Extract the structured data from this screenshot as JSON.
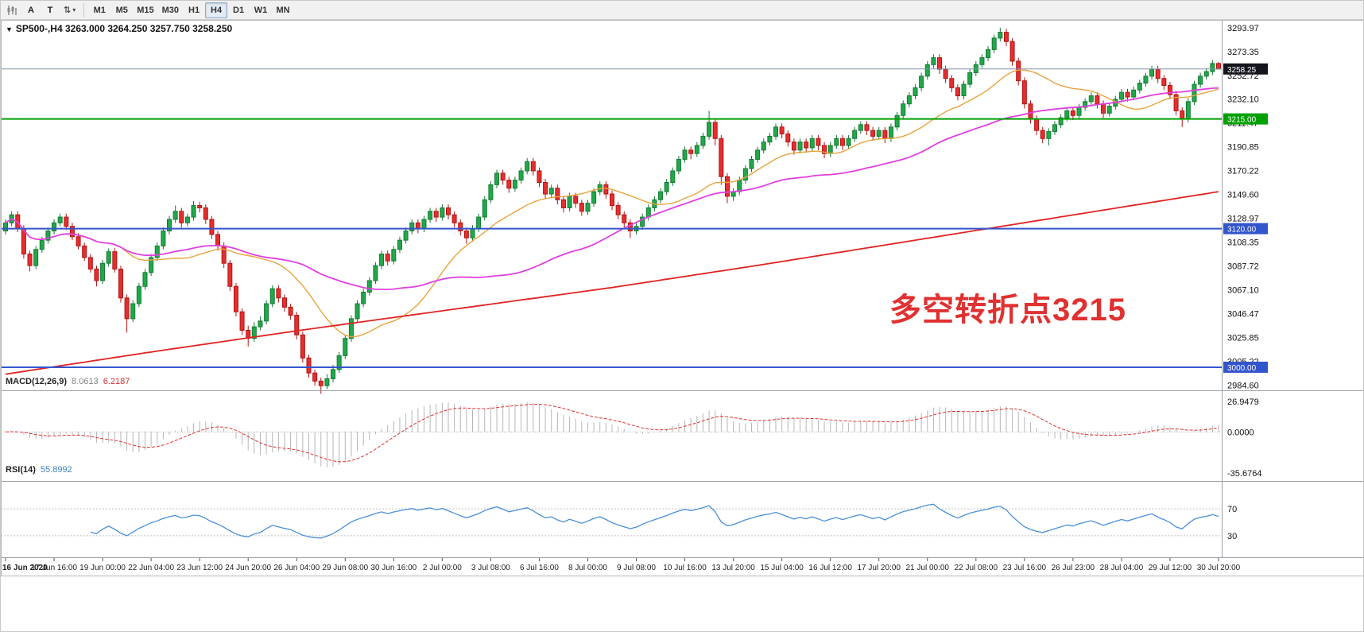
{
  "toolbar": {
    "tool_a": "A",
    "tool_t": "T",
    "scale_label": "⇅",
    "caret_icon": "▾",
    "timeframes": [
      "M1",
      "M5",
      "M15",
      "M30",
      "H1",
      "H4",
      "D1",
      "W1",
      "MN"
    ],
    "active_timeframe": "H4"
  },
  "chart": {
    "header": {
      "dropdown_icon": "▼",
      "symbol_period": "SP500-,H4",
      "ohlc": "3263.000 3264.250 3257.750 3258.250"
    },
    "annotation": {
      "text": "多空转折点3215",
      "color": "#e03131"
    },
    "macd_label": {
      "name": "MACD(12,26,9)",
      "main": "8.0613",
      "signal": "6.2187"
    },
    "rsi_label": {
      "name": "RSI(14)",
      "value": "55.8992"
    },
    "colors": {
      "up": "#21a84a",
      "up_border": "#157a34",
      "down": "#e62e2e",
      "down_border": "#b01414"
    },
    "levels": [
      {
        "type": "current-price",
        "label": "3258.25",
        "price": 3258.25,
        "line_color": "#7d94a6",
        "width": 1,
        "badge_color": "#15161d"
      },
      {
        "type": "horizontal-line",
        "label": "3215.00",
        "price": 3215.0,
        "line_color": "#00a000",
        "width": 2,
        "badge_color": "#00a000"
      },
      {
        "type": "horizontal-line",
        "label": "3120.00",
        "price": 3120.0,
        "line_color": "#3355cc",
        "width": 2,
        "badge_color": "#3355cc"
      },
      {
        "type": "horizontal-line",
        "label": "3000.00",
        "price": 3000.0,
        "line_color": "#3355cc",
        "width": 2,
        "badge_color": "#3355cc"
      }
    ]
  },
  "chart_data": {
    "type": "candlestick",
    "symbol": "SP500-",
    "period": "H4",
    "ylim": [
      2980,
      3298
    ],
    "price_axis_labels": [
      "3293.97",
      "3273.35",
      "3252.72",
      "3232.10",
      "3211.47",
      "3190.85",
      "3170.22",
      "3149.60",
      "3128.97",
      "3108.35",
      "3087.72",
      "3067.10",
      "3046.47",
      "3025.85",
      "3005.22",
      "2984.60"
    ],
    "time_labels": [
      "16 Jun 2020",
      "17 Jun 16:00",
      "19 Jun 00:00",
      "22 Jun 04:00",
      "23 Jun 12:00",
      "24 Jun 20:00",
      "26 Jun 04:00",
      "29 Jun 08:00",
      "30 Jun 16:00",
      "2 Jul 00:00",
      "3 Jul 08:00",
      "6 Jul 16:00",
      "8 Jul 00:00",
      "9 Jul 08:00",
      "10 Jul 16:00",
      "13 Jul 20:00",
      "15 Jul 04:00",
      "16 Jul 12:00",
      "17 Jul 20:00",
      "21 Jul 00:00",
      "22 Jul 08:00",
      "23 Jul 16:00",
      "26 Jul 23:00",
      "28 Jul 04:00",
      "29 Jul 12:00",
      "30 Jul 20:00"
    ],
    "candles": [
      [
        3118,
        3128,
        3115,
        3125
      ],
      [
        3125,
        3135,
        3122,
        3132
      ],
      [
        3132,
        3135,
        3117,
        3120
      ],
      [
        3120,
        3123,
        3094,
        3098
      ],
      [
        3098,
        3101,
        3083,
        3088
      ],
      [
        3088,
        3105,
        3085,
        3102
      ],
      [
        3102,
        3113,
        3099,
        3110
      ],
      [
        3110,
        3121,
        3107,
        3118
      ],
      [
        3118,
        3128,
        3115,
        3125
      ],
      [
        3125,
        3133,
        3122,
        3130
      ],
      [
        3130,
        3133,
        3119,
        3122
      ],
      [
        3122,
        3125,
        3110,
        3113
      ],
      [
        3113,
        3116,
        3102,
        3105
      ],
      [
        3105,
        3108,
        3092,
        3095
      ],
      [
        3095,
        3098,
        3082,
        3085
      ],
      [
        3085,
        3088,
        3070,
        3075
      ],
      [
        3075,
        3093,
        3072,
        3090
      ],
      [
        3090,
        3103,
        3087,
        3100
      ],
      [
        3100,
        3103,
        3082,
        3085
      ],
      [
        3085,
        3088,
        3056,
        3060
      ],
      [
        3060,
        3063,
        3030,
        3042
      ],
      [
        3042,
        3058,
        3039,
        3055
      ],
      [
        3055,
        3073,
        3052,
        3070
      ],
      [
        3070,
        3085,
        3067,
        3082
      ],
      [
        3082,
        3098,
        3079,
        3095
      ],
      [
        3095,
        3108,
        3092,
        3105
      ],
      [
        3105,
        3121,
        3102,
        3118
      ],
      [
        3118,
        3131,
        3115,
        3128
      ],
      [
        3128,
        3140,
        3125,
        3135
      ],
      [
        3135,
        3138,
        3121,
        3125
      ],
      [
        3125,
        3133,
        3122,
        3130
      ],
      [
        3130,
        3144,
        3127,
        3140
      ],
      [
        3140,
        3143,
        3134,
        3138
      ],
      [
        3138,
        3141,
        3124,
        3128
      ],
      [
        3128,
        3131,
        3111,
        3115
      ],
      [
        3115,
        3118,
        3101,
        3105
      ],
      [
        3105,
        3108,
        3086,
        3090
      ],
      [
        3090,
        3093,
        3066,
        3070
      ],
      [
        3070,
        3073,
        3044,
        3048
      ],
      [
        3048,
        3051,
        3028,
        3032
      ],
      [
        3032,
        3036,
        3018,
        3025
      ],
      [
        3025,
        3039,
        3022,
        3035
      ],
      [
        3035,
        3044,
        3032,
        3040
      ],
      [
        3040,
        3058,
        3037,
        3055
      ],
      [
        3055,
        3071,
        3052,
        3068
      ],
      [
        3068,
        3071,
        3056,
        3060
      ],
      [
        3060,
        3063,
        3048,
        3052
      ],
      [
        3052,
        3055,
        3041,
        3045
      ],
      [
        3045,
        3048,
        3024,
        3028
      ],
      [
        3028,
        3031,
        3004,
        3008
      ],
      [
        3008,
        3011,
        2991,
        2995
      ],
      [
        2995,
        2998,
        2984,
        2988
      ],
      [
        2988,
        2991,
        2977,
        2984
      ],
      [
        2984,
        2994,
        2981,
        2990
      ],
      [
        2990,
        3002,
        2987,
        2998
      ],
      [
        2998,
        3013,
        2995,
        3010
      ],
      [
        3010,
        3028,
        3007,
        3025
      ],
      [
        3025,
        3045,
        3022,
        3042
      ],
      [
        3042,
        3058,
        3039,
        3055
      ],
      [
        3055,
        3068,
        3052,
        3065
      ],
      [
        3065,
        3078,
        3062,
        3075
      ],
      [
        3075,
        3091,
        3072,
        3088
      ],
      [
        3088,
        3101,
        3085,
        3098
      ],
      [
        3098,
        3101,
        3088,
        3092
      ],
      [
        3092,
        3105,
        3089,
        3102
      ],
      [
        3102,
        3113,
        3099,
        3110
      ],
      [
        3110,
        3121,
        3107,
        3118
      ],
      [
        3118,
        3128,
        3115,
        3125
      ],
      [
        3125,
        3128,
        3116,
        3120
      ],
      [
        3120,
        3131,
        3117,
        3128
      ],
      [
        3128,
        3138,
        3125,
        3135
      ],
      [
        3135,
        3138,
        3126,
        3130
      ],
      [
        3130,
        3141,
        3127,
        3138
      ],
      [
        3138,
        3141,
        3128,
        3132
      ],
      [
        3132,
        3135,
        3121,
        3125
      ],
      [
        3125,
        3128,
        3114,
        3118
      ],
      [
        3118,
        3121,
        3107,
        3112
      ],
      [
        3112,
        3123,
        3109,
        3120
      ],
      [
        3120,
        3133,
        3117,
        3130
      ],
      [
        3130,
        3148,
        3127,
        3145
      ],
      [
        3145,
        3161,
        3142,
        3158
      ],
      [
        3158,
        3171,
        3155,
        3168
      ],
      [
        3168,
        3171,
        3158,
        3162
      ],
      [
        3162,
        3165,
        3151,
        3155
      ],
      [
        3155,
        3165,
        3152,
        3162
      ],
      [
        3162,
        3173,
        3159,
        3170
      ],
      [
        3170,
        3181,
        3167,
        3178
      ],
      [
        3178,
        3181,
        3166,
        3170
      ],
      [
        3170,
        3173,
        3156,
        3160
      ],
      [
        3160,
        3163,
        3146,
        3150
      ],
      [
        3150,
        3158,
        3147,
        3155
      ],
      [
        3155,
        3158,
        3141,
        3145
      ],
      [
        3145,
        3148,
        3134,
        3138
      ],
      [
        3138,
        3151,
        3135,
        3148
      ],
      [
        3148,
        3151,
        3138,
        3142
      ],
      [
        3142,
        3145,
        3131,
        3135
      ],
      [
        3135,
        3145,
        3132,
        3142
      ],
      [
        3142,
        3155,
        3139,
        3152
      ],
      [
        3152,
        3161,
        3149,
        3158
      ],
      [
        3158,
        3161,
        3146,
        3150
      ],
      [
        3150,
        3153,
        3136,
        3140
      ],
      [
        3140,
        3143,
        3128,
        3132
      ],
      [
        3132,
        3135,
        3121,
        3125
      ],
      [
        3125,
        3128,
        3112,
        3118
      ],
      [
        3118,
        3125,
        3115,
        3122
      ],
      [
        3122,
        3133,
        3119,
        3130
      ],
      [
        3130,
        3141,
        3127,
        3138
      ],
      [
        3138,
        3148,
        3135,
        3145
      ],
      [
        3145,
        3155,
        3142,
        3152
      ],
      [
        3152,
        3163,
        3149,
        3160
      ],
      [
        3160,
        3173,
        3157,
        3170
      ],
      [
        3170,
        3183,
        3167,
        3180
      ],
      [
        3180,
        3191,
        3177,
        3188
      ],
      [
        3188,
        3191,
        3180,
        3185
      ],
      [
        3185,
        3195,
        3182,
        3192
      ],
      [
        3192,
        3203,
        3189,
        3200
      ],
      [
        3200,
        3222,
        3197,
        3212
      ],
      [
        3212,
        3215,
        3192,
        3198
      ],
      [
        3198,
        3201,
        3158,
        3165
      ],
      [
        3165,
        3168,
        3142,
        3148
      ],
      [
        3148,
        3155,
        3144,
        3152
      ],
      [
        3152,
        3165,
        3149,
        3162
      ],
      [
        3162,
        3175,
        3159,
        3172
      ],
      [
        3172,
        3183,
        3169,
        3180
      ],
      [
        3180,
        3191,
        3177,
        3188
      ],
      [
        3188,
        3198,
        3185,
        3195
      ],
      [
        3195,
        3203,
        3192,
        3200
      ],
      [
        3200,
        3211,
        3197,
        3208
      ],
      [
        3208,
        3211,
        3198,
        3202
      ],
      [
        3202,
        3205,
        3191,
        3195
      ],
      [
        3195,
        3198,
        3184,
        3188
      ],
      [
        3188,
        3198,
        3185,
        3195
      ],
      [
        3195,
        3198,
        3186,
        3190
      ],
      [
        3190,
        3201,
        3187,
        3198
      ],
      [
        3198,
        3201,
        3188,
        3192
      ],
      [
        3192,
        3195,
        3181,
        3185
      ],
      [
        3185,
        3195,
        3182,
        3192
      ],
      [
        3192,
        3201,
        3189,
        3198
      ],
      [
        3198,
        3201,
        3188,
        3192
      ],
      [
        3192,
        3201,
        3189,
        3198
      ],
      [
        3198,
        3208,
        3195,
        3205
      ],
      [
        3205,
        3213,
        3202,
        3210
      ],
      [
        3210,
        3213,
        3201,
        3205
      ],
      [
        3205,
        3208,
        3196,
        3200
      ],
      [
        3200,
        3208,
        3197,
        3205
      ],
      [
        3205,
        3208,
        3194,
        3198
      ],
      [
        3198,
        3211,
        3195,
        3208
      ],
      [
        3208,
        3221,
        3205,
        3218
      ],
      [
        3218,
        3231,
        3215,
        3228
      ],
      [
        3228,
        3238,
        3225,
        3235
      ],
      [
        3235,
        3245,
        3232,
        3242
      ],
      [
        3242,
        3255,
        3239,
        3252
      ],
      [
        3252,
        3265,
        3249,
        3262
      ],
      [
        3262,
        3271,
        3259,
        3268
      ],
      [
        3268,
        3271,
        3254,
        3258
      ],
      [
        3258,
        3261,
        3246,
        3250
      ],
      [
        3250,
        3253,
        3238,
        3242
      ],
      [
        3242,
        3245,
        3231,
        3235
      ],
      [
        3235,
        3248,
        3232,
        3245
      ],
      [
        3245,
        3258,
        3242,
        3255
      ],
      [
        3255,
        3265,
        3252,
        3262
      ],
      [
        3262,
        3271,
        3259,
        3268
      ],
      [
        3268,
        3278,
        3265,
        3275
      ],
      [
        3275,
        3288,
        3272,
        3285
      ],
      [
        3285,
        3294,
        3282,
        3290
      ],
      [
        3290,
        3293,
        3278,
        3282
      ],
      [
        3282,
        3285,
        3261,
        3265
      ],
      [
        3265,
        3268,
        3244,
        3248
      ],
      [
        3248,
        3251,
        3224,
        3228
      ],
      [
        3228,
        3231,
        3211,
        3215
      ],
      [
        3215,
        3218,
        3201,
        3205
      ],
      [
        3205,
        3208,
        3194,
        3198
      ],
      [
        3198,
        3207,
        3192,
        3204
      ],
      [
        3204,
        3213,
        3201,
        3210
      ],
      [
        3210,
        3219,
        3207,
        3216
      ],
      [
        3216,
        3225,
        3213,
        3222
      ],
      [
        3222,
        3225,
        3214,
        3218
      ],
      [
        3218,
        3228,
        3215,
        3225
      ],
      [
        3225,
        3233,
        3222,
        3230
      ],
      [
        3230,
        3238,
        3227,
        3235
      ],
      [
        3235,
        3238,
        3224,
        3228
      ],
      [
        3228,
        3231,
        3216,
        3220
      ],
      [
        3220,
        3229,
        3217,
        3226
      ],
      [
        3226,
        3235,
        3223,
        3232
      ],
      [
        3232,
        3241,
        3229,
        3238
      ],
      [
        3238,
        3241,
        3230,
        3234
      ],
      [
        3234,
        3243,
        3231,
        3240
      ],
      [
        3240,
        3249,
        3237,
        3246
      ],
      [
        3246,
        3255,
        3243,
        3252
      ],
      [
        3252,
        3261,
        3249,
        3258
      ],
      [
        3258,
        3261,
        3246,
        3250
      ],
      [
        3250,
        3253,
        3240,
        3244
      ],
      [
        3244,
        3247,
        3232,
        3236
      ],
      [
        3236,
        3239,
        3218,
        3222
      ],
      [
        3222,
        3225,
        3208,
        3215
      ],
      [
        3215,
        3233,
        3212,
        3230
      ],
      [
        3230,
        3248,
        3227,
        3245
      ],
      [
        3245,
        3255,
        3242,
        3252
      ],
      [
        3252,
        3259,
        3249,
        3256
      ],
      [
        3256,
        3266,
        3253,
        3263
      ],
      [
        3263,
        3264.25,
        3257.75,
        3258.25
      ]
    ],
    "overlays": [
      {
        "name": "MA20",
        "color": "#e8a33d",
        "period": 20,
        "width": 1.4
      },
      {
        "name": "MA50",
        "color": "#e040e0",
        "period": 50,
        "width": 1.8
      },
      {
        "name": "MA-slow",
        "color": "#e02424",
        "width": 1.8,
        "anchors": [
          [
            0,
            2994
          ],
          [
            25,
            3014
          ],
          [
            50,
            3033
          ],
          [
            75,
            3051
          ],
          [
            100,
            3069
          ],
          [
            125,
            3089
          ],
          [
            150,
            3110
          ],
          [
            175,
            3131
          ],
          [
            200,
            3152
          ]
        ]
      }
    ],
    "indicators": [
      {
        "name": "MACD",
        "params": "12,26,9",
        "main_value": "8.0613",
        "signal_value": "6.2187",
        "range": [
          -35.6764,
          26.9479
        ],
        "axis_labels": [
          "26.9479",
          "0.0000",
          "-35.6764"
        ],
        "histogram_color": "#b6b6b6",
        "signal_color": "#e03131"
      },
      {
        "name": "RSI",
        "params": "14",
        "value": "55.8992",
        "range": [
          5,
          95
        ],
        "levels": [
          70,
          30
        ],
        "axis_labels": [
          "70",
          "30"
        ],
        "line_color": "#4a90d9"
      }
    ]
  }
}
